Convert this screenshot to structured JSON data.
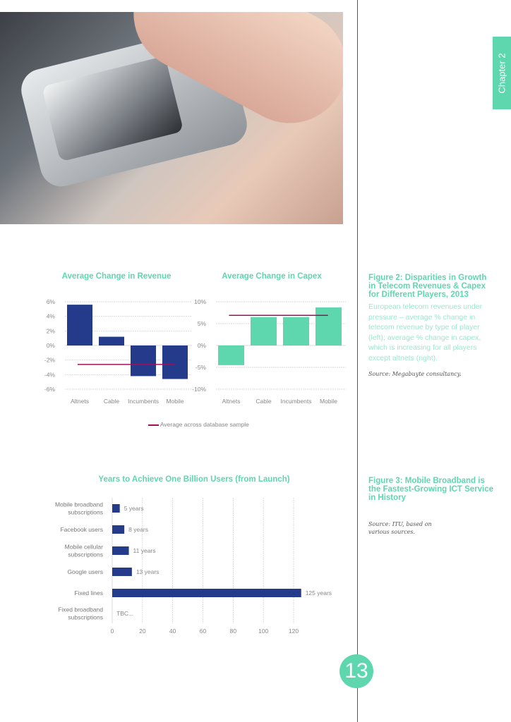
{
  "chapter_tab": {
    "label": "Chapter  2"
  },
  "page_number": "13",
  "colors": {
    "accent": "#5ed6ae",
    "navy": "#243a8a",
    "average_line": "#a0105a"
  },
  "photo": {
    "icon": "smartwatch-touch-photo"
  },
  "figure2": {
    "title": "Figure 2: Disparities in Growth in Telecom Revenues & Capex for Different Players, 2013",
    "caption": "European telecom revenues under pressure – average % change in telecom revenue by type of player (left); average % change in capex, which is increasing for all players except altnets (right).",
    "source": "Source: Megabuyte consultancy.",
    "legend": "Average across database sample"
  },
  "figure3": {
    "title": "Figure 3: Mobile Broadband is the Fastest-Growing ICT Service in History",
    "source": "Source: ITU, based on various sources."
  },
  "chart_data": [
    {
      "type": "bar",
      "title": "Average Change in Revenue",
      "categories": [
        "Altnets",
        "Cable",
        "Incumbents",
        "Mobile"
      ],
      "values": [
        5.6,
        1.2,
        -4.2,
        -4.6
      ],
      "average": -2.6,
      "ylim": [
        -6,
        6
      ],
      "yticks": [
        "6%",
        "4%",
        "2%",
        "0%",
        "-2%",
        "-4%",
        "-6%"
      ],
      "ytick_values": [
        6,
        4,
        2,
        0,
        -2,
        -4,
        -6
      ],
      "color": "#243a8a",
      "grid": true
    },
    {
      "type": "bar",
      "title": "Average Change in Capex",
      "categories": [
        "Altnets",
        "Cable",
        "Incumbents",
        "Mobile"
      ],
      "values": [
        -4.5,
        6.5,
        6.5,
        8.7
      ],
      "average": 6.9,
      "ylim": [
        -10,
        10
      ],
      "yticks": [
        "10%",
        "5%",
        "0%",
        "-5%",
        "-10%"
      ],
      "ytick_values": [
        10,
        5,
        0,
        -5,
        -10
      ],
      "color": "#5ed6ae",
      "grid": true
    },
    {
      "type": "bar",
      "orientation": "horizontal",
      "title": "Years to Achieve One Billion Users (from Launch)",
      "categories": [
        "Mobile broadband subscriptions",
        "Facebook users",
        "Mobile cellular subscriptions",
        "Google users",
        "Fixed lines",
        "Fixed broadband subscriptions"
      ],
      "values": [
        5,
        8,
        11,
        13,
        125,
        null
      ],
      "data_labels": [
        "5 years",
        "8 years",
        "11 years",
        "13 years",
        "125 years",
        "TBC..."
      ],
      "xlim": [
        0,
        120
      ],
      "xticks": [
        "0",
        "20",
        "40",
        "60",
        "80",
        "100",
        "120"
      ],
      "xtick_values": [
        0,
        20,
        40,
        60,
        80,
        100,
        120
      ],
      "color": "#243a8a",
      "grid": true
    }
  ]
}
